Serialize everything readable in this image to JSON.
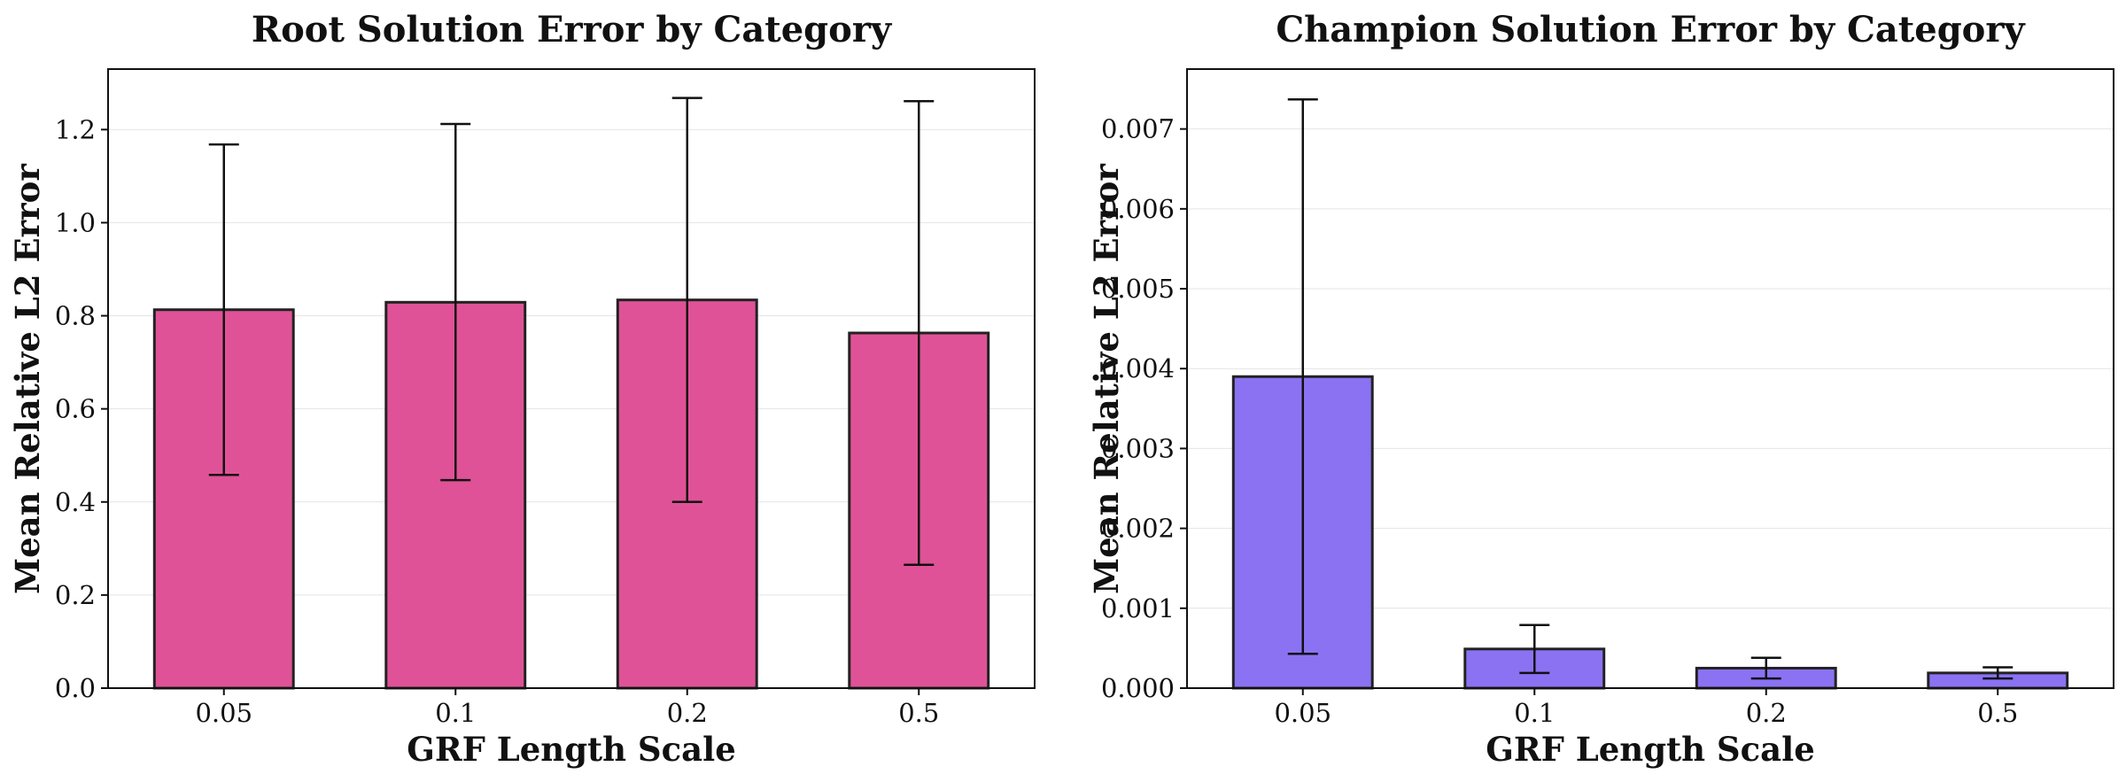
{
  "chart_data": [
    {
      "type": "bar",
      "title": "Root Solution Error by Category",
      "xlabel": "GRF Length Scale",
      "ylabel": "Mean Relative L2 Error",
      "categories": [
        "0.05",
        "0.1",
        "0.2",
        "0.5"
      ],
      "values": [
        0.813,
        0.829,
        0.834,
        0.763
      ],
      "error_low": [
        0.458,
        0.447,
        0.4,
        0.265
      ],
      "error_high": [
        1.168,
        1.212,
        1.268,
        1.261
      ],
      "ylim": [
        0,
        1.33
      ],
      "yticks": [
        0.0,
        0.2,
        0.4,
        0.6,
        0.8,
        1.0,
        1.2
      ],
      "ytick_labels": [
        "0.0",
        "0.2",
        "0.4",
        "0.6",
        "0.8",
        "1.0",
        "1.2"
      ],
      "color": "#e05297",
      "grid": "horizontal"
    },
    {
      "type": "bar",
      "title": "Champion Solution Error by Category",
      "xlabel": "GRF Length Scale",
      "ylabel": "Mean Relative L2 Error",
      "categories": [
        "0.05",
        "0.1",
        "0.2",
        "0.5"
      ],
      "values": [
        0.0039,
        0.00049,
        0.00025,
        0.00019
      ],
      "error_low": [
        0.00043,
        0.00019,
        0.00012,
        0.00012
      ],
      "error_high": [
        0.00737,
        0.00079,
        0.00038,
        0.00026
      ],
      "ylim": [
        0,
        0.00775
      ],
      "yticks": [
        0.0,
        0.001,
        0.002,
        0.003,
        0.004,
        0.005,
        0.006,
        0.007
      ],
      "ytick_labels": [
        "0.000",
        "0.001",
        "0.002",
        "0.003",
        "0.004",
        "0.005",
        "0.006",
        "0.007"
      ],
      "color": "#8b72f3",
      "grid": "horizontal"
    }
  ]
}
